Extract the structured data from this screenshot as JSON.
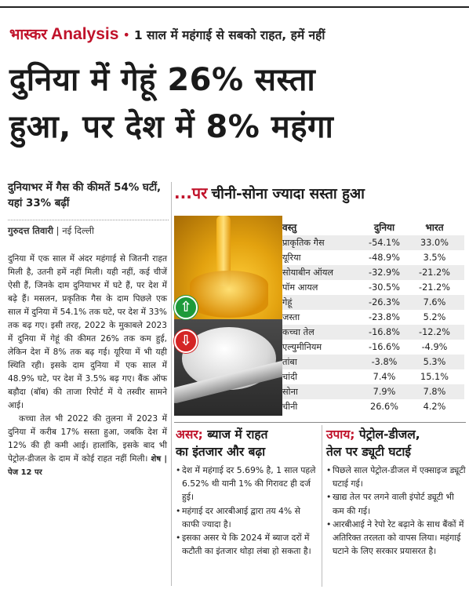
{
  "kicker": {
    "brand": "भास्कर",
    "analysis": "Analysis",
    "tagline": "1 साल में महंगाई से सबको राहत, हमें नहीं"
  },
  "headline": {
    "line1": "दुनिया में गेहूं 26% सस्ता",
    "line2": "हुआ, पर देश में 8% महंगा"
  },
  "left": {
    "subhead": "दुनियाभर में गैस की कीमतें 54% घटीं, यहां 33% बढ़ीं",
    "author": "गुरुदत्त तिवारी",
    "place": "नई दिल्ली",
    "para1": "दुनिया में एक साल में अंदर महंगाई से जितनी राहत मिली है, उतनी हमें नहीं मिली। यही नहीं, कई चीजें ऐसी हैं, जिनके दाम दुनियाभर में घटे हैं, पर देश में बढ़े हैं। मसलन, प्रकृतिक गैस के दाम पिछले एक साल में दुनिया में 54.1% तक घटे, पर देश में 33% तक बढ़ गए। इसी तरह, 2022 के मुकाबले 2023 में दुनिया में गेहूं की कीमत 26% तक कम हुई, लेकिन देश में 8% तक बढ़ गई। यूरिया में भी यही स्थिति रही। इसके दाम दुनिया में एक साल में 48.9% घटे, पर देश में 3.5% बढ़ गए। बैंक ऑफ बड़ौदा (बॉब) की ताजा रिपोर्ट में ये तस्वीर सामने आई।",
    "para2": "कच्चा तेल भी 2022 की तुलना में 2023 में दुनिया में करीब 17% सस्ता हुआ, जबकि देश में 12% की ही कमी आई। हालांकि, इसके बाद भी पेट्रोल-डीजल के दाम में कोई राहत नहीं मिली।",
    "continued": "शेष | पेज 12 पर"
  },
  "box": {
    "prefix": "...पर",
    "title": "चीनी-सोना ज्यादा सस्ता हुआ"
  },
  "table": {
    "headers": [
      "वस्तु",
      "दुनिया",
      "भारत"
    ],
    "rows": [
      [
        "प्राकृतिक गैस",
        "-54.1%",
        "33.0%"
      ],
      [
        "यूरिया",
        "-48.9%",
        "3.5%"
      ],
      [
        "सोयाबीन ऑयल",
        "-32.9%",
        "-21.2%"
      ],
      [
        "पॉम आयल",
        "-30.5%",
        "-21.2%"
      ],
      [
        "गेहूं",
        "-26.3%",
        "7.6%"
      ],
      [
        "जस्ता",
        "-23.8%",
        "5.2%"
      ],
      [
        "कच्चा तेल",
        "-16.8%",
        "-12.2%"
      ],
      [
        "एल्युमीनियम",
        "-16.6%",
        "-4.9%"
      ],
      [
        "तांबा",
        "-3.8%",
        "5.3%"
      ],
      [
        "चांदी",
        "7.4%",
        "15.1%"
      ],
      [
        "सोना",
        "7.9%",
        "7.8%"
      ],
      [
        "चीनी",
        "26.6%",
        "4.2%"
      ]
    ]
  },
  "asar": {
    "label": "असर;",
    "title1": "ब्याज में राहत",
    "title2": "का इंतजार और बढ़ा",
    "bullets": [
      "देश में महंगाई दर 5.69% है, 1 साल पहले 6.52% थी यानी 1% की गिरावट ही दर्ज हुई।",
      "महंगाई दर आरबीआई द्वारा तय 4% से काफी ज्यादा है।",
      "इसका असर ये कि 2024 में ब्याज दरों में कटौती का इंतजार थोड़ा लंबा हो सकता है।"
    ]
  },
  "upay": {
    "label": "उपाय;",
    "title1": "पेट्रोल-डीजल,",
    "title2": "तेल पर ड्यूटी घटाई",
    "bullets": [
      "पिछले साल पेट्रोल-डीजल में एक्साइज ड्यूटी घटाई गई।",
      "खाद्य तेल पर लगने वाली इंपोर्ट ड्यूटी भी कम की गई।",
      "आरबीआई ने रेपो रेट बढ़ाने के साथ बैंकों में अतिरिक्त तरलता को वापस लिया। महंगाई घटाने के लिए सरकार प्रयासरत है।"
    ]
  },
  "colors": {
    "accent": "#c0122a",
    "up": "#1d9a3a",
    "down": "#d42424"
  },
  "icons": {
    "up": "up-arrow-icon",
    "down": "down-arrow-icon"
  }
}
